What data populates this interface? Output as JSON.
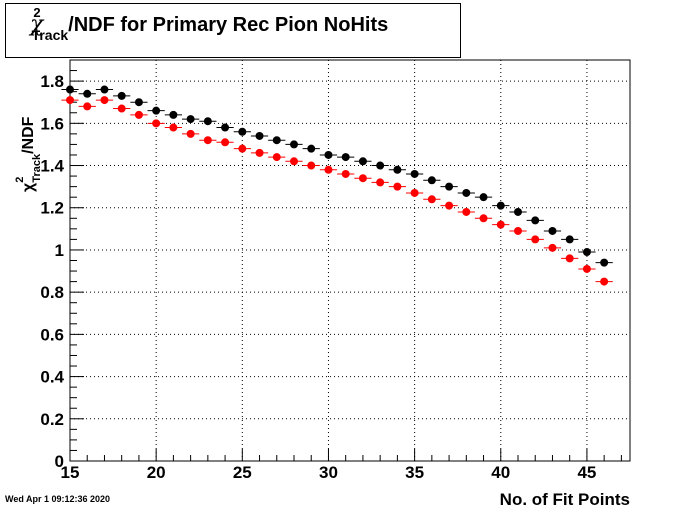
{
  "title_prefix": "χ",
  "title_sup": "2",
  "title_sub": "Track",
  "title_rest": "/NDF for Primary Rec Pion NoHits",
  "ylabel_prefix": "χ",
  "ylabel_sup": "2",
  "ylabel_sub": "Track",
  "ylabel_rest": "/NDF",
  "footer_date": "Wed Apr  1 09:12:36 2020",
  "colors": {
    "series_black": "#000000",
    "series_red": "#ff0000",
    "grid": "#000000"
  },
  "chart_data": {
    "type": "scatter",
    "title": "χ²_Track/NDF for Primary Rec Pion NoHits",
    "xlabel": "No. of Fit Points",
    "ylabel": "χ²_Track/NDF",
    "xlim": [
      15,
      47.5
    ],
    "ylim": [
      0,
      1.9
    ],
    "xticks": [
      15,
      20,
      25,
      30,
      35,
      40,
      45
    ],
    "yticks": [
      0,
      0.2,
      0.4,
      0.6,
      0.8,
      1,
      1.2,
      1.4,
      1.6,
      1.8
    ],
    "xtick_labels": [
      "15",
      "20",
      "25",
      "30",
      "35",
      "40",
      "45"
    ],
    "ytick_labels": [
      "0",
      "0.2",
      "0.4",
      "0.6",
      "0.8",
      "1",
      "1.2",
      "1.4",
      "1.6",
      "1.8"
    ],
    "grid": true,
    "x": [
      15,
      16,
      17,
      18,
      19,
      20,
      21,
      22,
      23,
      24,
      25,
      26,
      27,
      28,
      29,
      30,
      31,
      32,
      33,
      34,
      35,
      36,
      37,
      38,
      39,
      40,
      41,
      42,
      43,
      44,
      45,
      46
    ],
    "series": [
      {
        "color": "#000000",
        "values": [
          1.76,
          1.74,
          1.76,
          1.73,
          1.7,
          1.66,
          1.64,
          1.62,
          1.61,
          1.58,
          1.56,
          1.54,
          1.52,
          1.5,
          1.48,
          1.45,
          1.44,
          1.42,
          1.4,
          1.38,
          1.36,
          1.33,
          1.3,
          1.27,
          1.25,
          1.21,
          1.18,
          1.14,
          1.09,
          1.05,
          0.99,
          0.94
        ]
      },
      {
        "color": "#ff0000",
        "values": [
          1.71,
          1.68,
          1.71,
          1.67,
          1.64,
          1.6,
          1.58,
          1.55,
          1.52,
          1.51,
          1.48,
          1.46,
          1.44,
          1.42,
          1.4,
          1.38,
          1.36,
          1.34,
          1.32,
          1.3,
          1.27,
          1.24,
          1.21,
          1.18,
          1.15,
          1.12,
          1.09,
          1.05,
          1.01,
          0.96,
          0.91,
          0.85
        ]
      }
    ]
  }
}
